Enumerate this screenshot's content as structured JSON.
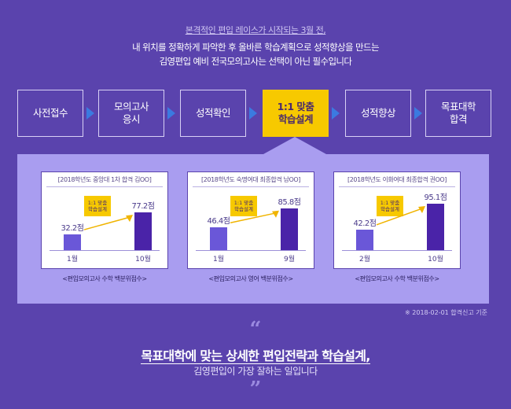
{
  "header": {
    "kicker": "본격적인 편입 레이스가 시작되는 3월 전,",
    "line1": "내 위치를 정확하게 파악한 후 올바른 학습계획으로 성적향상을 만드는",
    "line2": "김영편입 예비 전국모의고사는 선택이 아닌 필수입니다"
  },
  "steps": [
    {
      "label": "사전접수",
      "active": false
    },
    {
      "label": "모의고사\n응시",
      "active": false
    },
    {
      "label": "성적확인",
      "active": false
    },
    {
      "label": "1:1 맞춤\n학습설계",
      "active": true
    },
    {
      "label": "성적향상",
      "active": false
    },
    {
      "label": "목표대학\n합격",
      "active": false
    }
  ],
  "cards": [
    {
      "title": "[2018학년도 중앙대 1차 합격 김OO]",
      "badge": "1:1 맞춤\n학습설계",
      "before": {
        "month": "1월",
        "score_label": "32.2점",
        "score": 32.2
      },
      "after": {
        "month": "10월",
        "score_label": "77.2점",
        "score": 77.2
      },
      "caption": "<편입모의고사 수학 백분위점수>"
    },
    {
      "title": "[2018학년도 숙명여대 최종합격 남OO]",
      "badge": "1:1 맞춤\n학습설계",
      "before": {
        "month": "1월",
        "score_label": "46.4점",
        "score": 46.4
      },
      "after": {
        "month": "9월",
        "score_label": "85.8점",
        "score": 85.8
      },
      "caption": "<편입모의고사 영어 백분위점수>"
    },
    {
      "title": "[2018학년도 이화여대 최종합격 권OO]",
      "badge": "1:1 맞춤\n학습설계",
      "before": {
        "month": "2월",
        "score_label": "42.2점",
        "score": 42.2
      },
      "after": {
        "month": "10월",
        "score_label": "95.1점",
        "score": 95.1
      },
      "caption": "<편입모의고사 수학 백분위점수>"
    }
  ],
  "footnote": "※ 2018-02-01 합격신고 기준",
  "closing": {
    "quote_open": "“",
    "headline": "목표대학에 맞는 상세한 편입전략과 학습설계,",
    "subline": "김영편입이 가장 잘하는 일입니다",
    "quote_close": "”"
  },
  "colors": {
    "background": "#5a43ad",
    "panel": "#a99df0",
    "highlight": "#f7c900",
    "arrow": "#3b7ae0",
    "bar_before": "#6a57d8",
    "bar_after": "#4a23a8"
  }
}
